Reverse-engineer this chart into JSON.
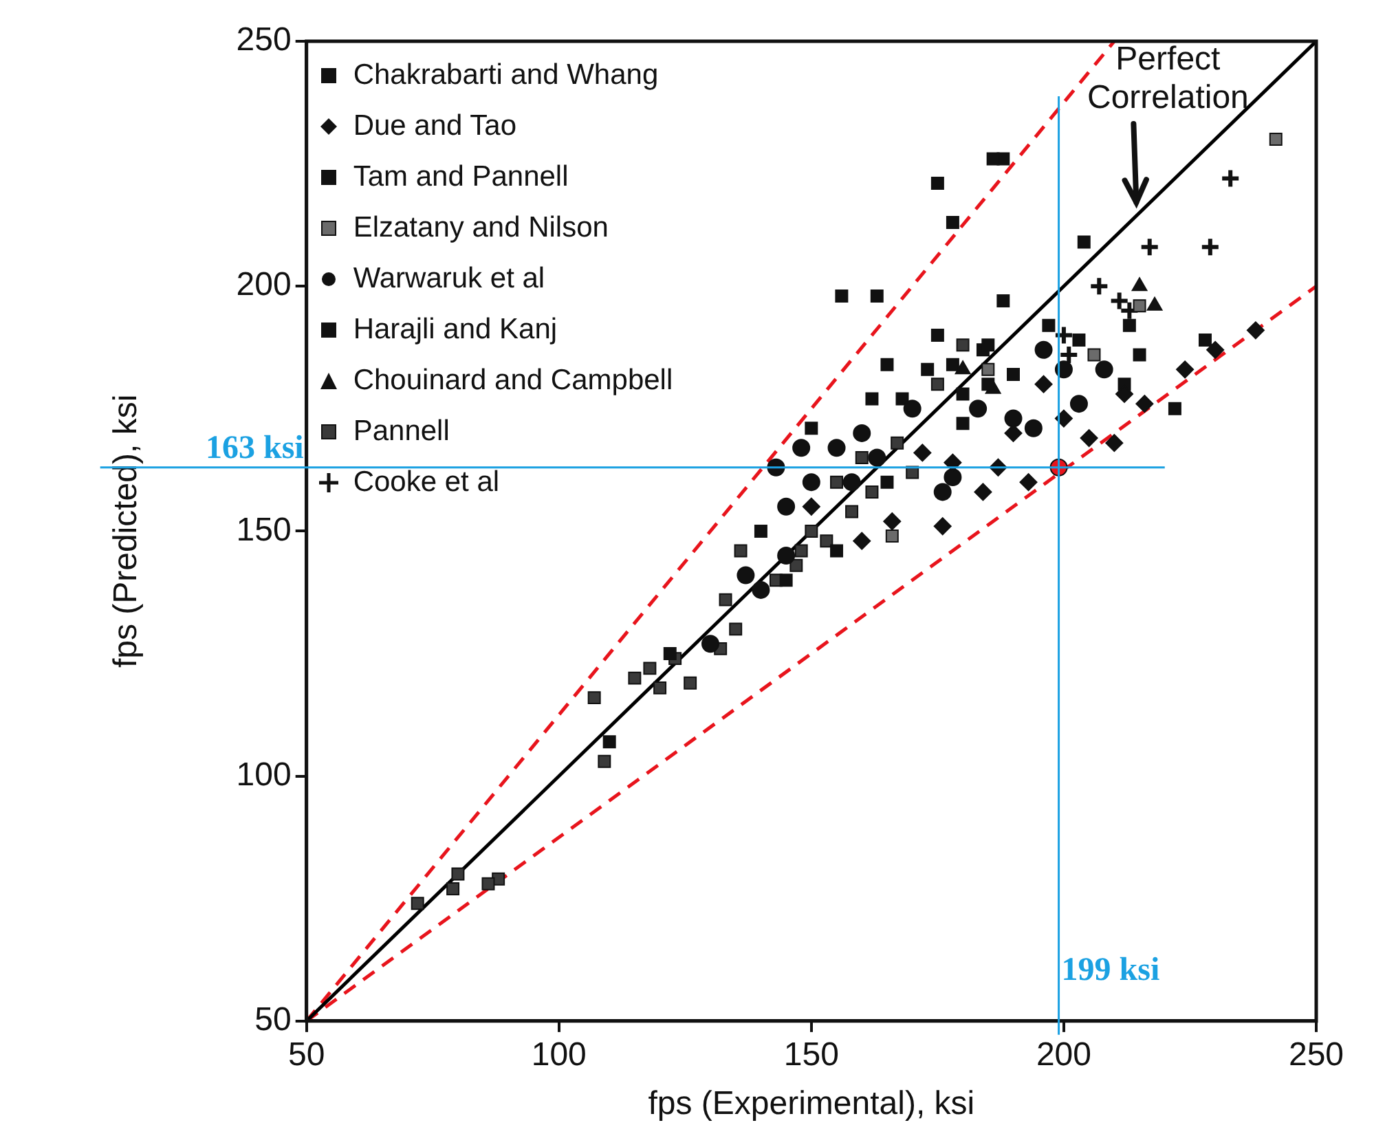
{
  "chart_data": {
    "type": "scatter",
    "xlabel": "fps (Experimental), ksi",
    "ylabel": "fps (Predicted), ksi",
    "xlim": [
      50,
      250
    ],
    "ylim": [
      50,
      250
    ],
    "xticks": [
      50,
      100,
      150,
      200,
      250
    ],
    "yticks": [
      50,
      100,
      150,
      200,
      250
    ],
    "grid": false,
    "legend": "top left",
    "series": [
      {
        "name": "Chakrabarti and Whang",
        "color": "#111111",
        "marker": "square",
        "x": [
          175,
          178,
          186,
          156,
          163,
          204,
          150,
          165,
          185
        ],
        "values": [
          221,
          213,
          226,
          198,
          198,
          209,
          171,
          184,
          188
        ]
      },
      {
        "name": "Due and Tao",
        "color": "#111111",
        "marker": "diamond",
        "x": [
          238,
          230,
          224,
          212,
          205,
          200,
          190,
          172,
          210,
          216,
          193,
          184,
          176,
          166,
          160,
          150,
          187,
          196,
          178
        ],
        "values": [
          191,
          187,
          183,
          178,
          169,
          173,
          170,
          166,
          168,
          176,
          160,
          158,
          151,
          152,
          148,
          155,
          163,
          180,
          164
        ]
      },
      {
        "name": "Tam and Pannell",
        "color": "#111111",
        "marker": "square",
        "x": [
          110,
          140,
          145,
          155,
          122,
          165,
          180
        ],
        "values": [
          107,
          150,
          140,
          146,
          125,
          160,
          172
        ]
      },
      {
        "name": "Elzatany and Nilson",
        "color": "#6b6b6b",
        "marker": "square",
        "x": [
          242,
          166,
          185,
          206,
          215
        ],
        "values": [
          230,
          149,
          183,
          186,
          196
        ]
      },
      {
        "name": "Warwaruk et al",
        "color": "#111111",
        "marker": "circle",
        "x": [
          143,
          148,
          145,
          150,
          137,
          140,
          155,
          160,
          170,
          176,
          183,
          190,
          200,
          203,
          208,
          196,
          158,
          163,
          130,
          145,
          178,
          194
        ],
        "values": [
          163,
          167,
          155,
          160,
          141,
          138,
          167,
          170,
          175,
          158,
          175,
          173,
          183,
          176,
          183,
          187,
          160,
          165,
          127,
          145,
          161,
          171
        ]
      },
      {
        "name": "Harajli and Kanj",
        "color": "#111111",
        "marker": "square",
        "x": [
          188,
          188,
          162,
          168,
          173,
          175,
          178,
          184,
          190,
          197,
          213,
          215,
          228,
          222,
          185,
          180,
          203,
          212
        ],
        "values": [
          226,
          197,
          177,
          177,
          183,
          190,
          184,
          187,
          182,
          192,
          192,
          186,
          189,
          175,
          180,
          178,
          189,
          180
        ]
      },
      {
        "name": "Chouinard and Campbell",
        "color": "#111111",
        "marker": "triangle",
        "x": [
          215,
          218,
          186,
          180
        ],
        "values": [
          200,
          196,
          179,
          183
        ]
      },
      {
        "name": "Pannell",
        "color": "#3a3a3a",
        "marker": "square",
        "x": [
          72,
          80,
          79,
          88,
          86,
          107,
          109,
          115,
          118,
          120,
          123,
          126,
          133,
          135,
          136,
          143,
          148,
          150,
          153,
          155,
          158,
          167,
          170,
          175,
          160,
          180,
          147,
          162,
          132
        ],
        "values": [
          74,
          80,
          77,
          79,
          78,
          116,
          103,
          120,
          122,
          118,
          124,
          119,
          136,
          130,
          146,
          140,
          146,
          150,
          148,
          160,
          154,
          168,
          162,
          180,
          165,
          188,
          143,
          158,
          126
        ]
      },
      {
        "name": "Cooke et al",
        "color": "#111111",
        "marker": "cross",
        "x": [
          233,
          217,
          229,
          207,
          200,
          213,
          201,
          211
        ],
        "values": [
          222,
          208,
          208,
          200,
          190,
          195,
          186,
          197
        ]
      },
      {
        "type": "scatter",
        "color": "#e8141c",
        "marker": "circle",
        "x": [
          199
        ],
        "values": [
          163
        ]
      },
      {
        "type": "line",
        "color": "#000000",
        "marker": "none",
        "line_style": "solid",
        "x": [
          50,
          250
        ],
        "values": [
          50,
          250
        ]
      },
      {
        "type": "line",
        "color": "#e8141c",
        "marker": "none",
        "line_style": "dashed",
        "x": [
          50,
          210
        ],
        "values": [
          50,
          250
        ]
      },
      {
        "type": "line",
        "color": "#e8141c",
        "marker": "none",
        "line_style": "dashed",
        "x": [
          50,
          250
        ],
        "values": [
          50,
          200
        ]
      }
    ],
    "ref_lines": [
      {
        "axis": "y",
        "value": 163,
        "label": "163 ksi",
        "color": "#1ba1e2"
      },
      {
        "axis": "x",
        "value": 199,
        "label": "199 ksi",
        "color": "#1ba1e2"
      }
    ],
    "annotations": [
      {
        "text": "Perfect Correlation",
        "x": 216,
        "y": 216
      }
    ]
  }
}
